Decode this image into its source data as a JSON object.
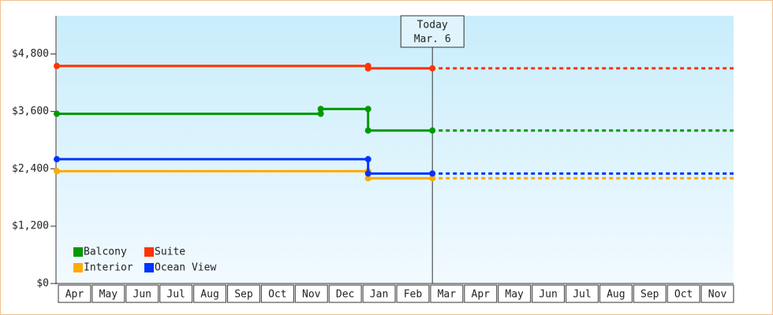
{
  "chart_data": {
    "type": "step-line",
    "categories": [
      "Apr",
      "May",
      "Jun",
      "Jul",
      "Aug",
      "Sep",
      "Oct",
      "Nov",
      "Dec",
      "Jan",
      "Feb",
      "Mar",
      "Apr",
      "May",
      "Jun",
      "Jul",
      "Aug",
      "Sep",
      "Oct",
      "Nov"
    ],
    "xlim": [
      0,
      20
    ],
    "ylim": [
      0,
      5600
    ],
    "yticks": [
      {
        "value": 0,
        "label": "$0"
      },
      {
        "value": 1200,
        "label": "$1,200"
      },
      {
        "value": 2400,
        "label": "$2,400"
      },
      {
        "value": 3600,
        "label": "$3,600"
      },
      {
        "value": 4800,
        "label": "$4,800"
      }
    ],
    "grid": false,
    "legend": "bottom-left",
    "annotation": {
      "lines": [
        "Today",
        "Mar. 6"
      ],
      "x": 11.1
    },
    "series": [
      {
        "name": "Balcony",
        "color": "#009900",
        "x": [
          0,
          7.8,
          7.8,
          9.2,
          9.2,
          11.1
        ],
        "values": [
          3550,
          3550,
          3650,
          3650,
          3200,
          3200
        ]
      },
      {
        "name": "Suite",
        "color": "#ff3300",
        "x": [
          0,
          9.2,
          9.2,
          11.1
        ],
        "values": [
          4550,
          4550,
          4500,
          4500
        ]
      },
      {
        "name": "Interior",
        "color": "#ffaa00",
        "x": [
          0,
          9.2,
          9.2,
          11.1
        ],
        "values": [
          2350,
          2350,
          2200,
          2200
        ]
      },
      {
        "name": "Ocean View",
        "color": "#0033ff",
        "x": [
          0,
          9.2,
          9.2,
          11.1
        ],
        "values": [
          2600,
          2600,
          2300,
          2300
        ]
      }
    ]
  }
}
